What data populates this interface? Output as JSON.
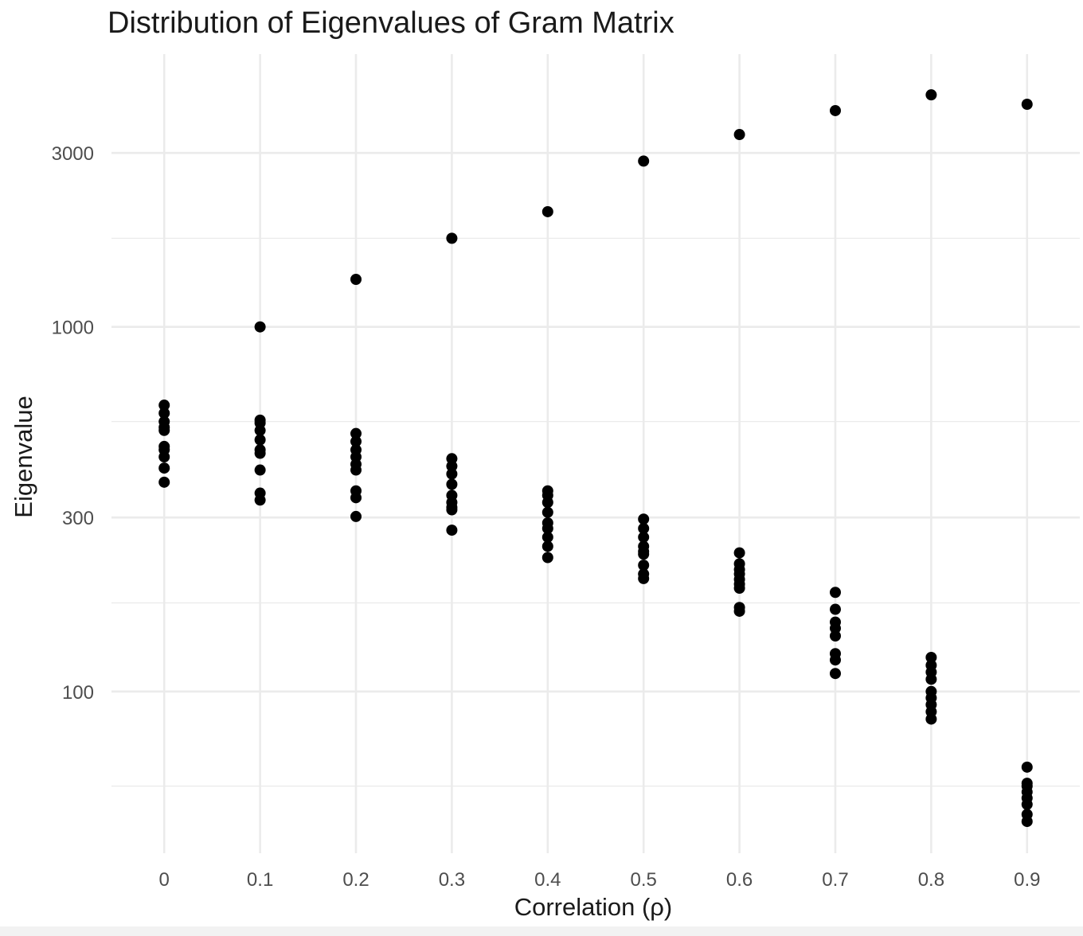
{
  "chart_data": {
    "type": "scatter",
    "title": "Distribution of Eigenvalues of Gram Matrix",
    "xlabel": "Correlation (ρ)",
    "ylabel": "Eigenvalue",
    "y_scale": "log10",
    "ylim": [
      36,
      5600
    ],
    "xlim": [
      -0.055,
      0.955
    ],
    "x_ticks": [
      0,
      0.1,
      0.2,
      0.3,
      0.4,
      0.5,
      0.6,
      0.7,
      0.8,
      0.9
    ],
    "x_tick_labels": [
      "0",
      "0.1",
      "0.2",
      "0.3",
      "0.4",
      "0.5",
      "0.6",
      "0.7",
      "0.8",
      "0.9"
    ],
    "y_ticks": [
      100,
      300,
      1000,
      3000
    ],
    "y_tick_labels": [
      "100",
      "300",
      "1000",
      "3000"
    ],
    "y_minor_gridlines": [
      55,
      175,
      550,
      1750
    ],
    "grid": true,
    "point_color": "#000000",
    "grid_color": "#ebebeb",
    "series": [
      {
        "x": 0,
        "values": [
          610,
          580,
          550,
          530,
          520,
          470,
          460,
          440,
          410,
          375
        ]
      },
      {
        "x": 0.1,
        "values": [
          1000,
          555,
          545,
          520,
          490,
          460,
          450,
          405,
          350,
          335
        ]
      },
      {
        "x": 0.2,
        "values": [
          1350,
          510,
          485,
          460,
          440,
          420,
          405,
          355,
          340,
          302
        ]
      },
      {
        "x": 0.3,
        "values": [
          1750,
          435,
          415,
          395,
          370,
          345,
          330,
          320,
          315,
          277
        ]
      },
      {
        "x": 0.4,
        "values": [
          2070,
          355,
          345,
          330,
          310,
          290,
          280,
          265,
          250,
          233
        ]
      },
      {
        "x": 0.5,
        "values": [
          2850,
          297,
          280,
          265,
          250,
          242,
          238,
          222,
          210,
          204
        ]
      },
      {
        "x": 0.6,
        "values": [
          3370,
          240,
          224,
          216,
          210,
          203,
          197,
          192,
          170,
          166
        ]
      },
      {
        "x": 0.7,
        "values": [
          3920,
          187,
          168,
          155,
          149,
          142,
          127,
          122,
          112
        ]
      },
      {
        "x": 0.8,
        "values": [
          4330,
          124,
          118,
          113,
          108,
          100,
          96,
          92,
          88,
          84
        ]
      },
      {
        "x": 0.9,
        "values": [
          4080,
          62,
          56,
          55,
          53,
          51,
          49,
          46,
          44
        ]
      }
    ]
  }
}
